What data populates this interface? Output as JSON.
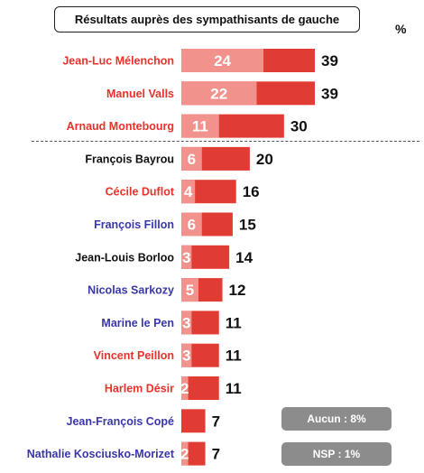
{
  "header": {
    "title": "Résultats auprès des sympathisants de gauche",
    "unit": "%"
  },
  "notes": {
    "aucun": "Aucun : 8%",
    "nsp": "NSP : 1%"
  },
  "colors": {
    "bar_dark": "#e03c33",
    "bar_light": "#f1928d",
    "left": "#e8322b",
    "center": "#111111",
    "right": "#3a37a8",
    "note_bg": "#8c8c8c"
  },
  "chart_data": {
    "type": "bar",
    "orientation": "horizontal",
    "stacked": true,
    "title": "Résultats auprès des sympathisants de gauche",
    "unit": "%",
    "categories": [
      "Jean-Luc Mélenchon",
      "Manuel Valls",
      "Arnaud Montebourg",
      "François Bayrou",
      "Cécile Duflot",
      "François Fillon",
      "Jean-Louis Borloo",
      "Nicolas Sarkozy",
      "Marine le Pen",
      "Vincent Peillon",
      "Harlem Désir",
      "Jean-François Copé",
      "Nathalie Kosciusko-Morizet"
    ],
    "label_colors": [
      "left",
      "left",
      "left",
      "center",
      "left",
      "right",
      "center",
      "right",
      "right",
      "left",
      "left",
      "right",
      "right"
    ],
    "inner_values": [
      24,
      22,
      11,
      6,
      4,
      6,
      3,
      5,
      3,
      3,
      2,
      null,
      2
    ],
    "totals": [
      39,
      39,
      30,
      20,
      16,
      15,
      14,
      12,
      11,
      11,
      11,
      7,
      7
    ],
    "separator_after_index": 2,
    "xlim": [
      0,
      39
    ]
  }
}
